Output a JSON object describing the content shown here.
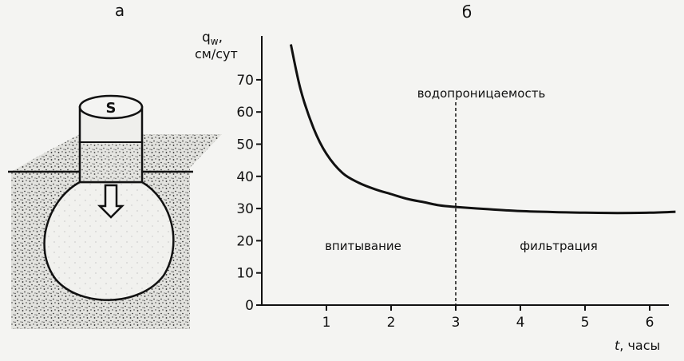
{
  "panels": {
    "left_label": "а",
    "right_label": "б"
  },
  "illustration": {
    "cylinder_label": "S"
  },
  "chart_data": {
    "type": "line",
    "ylabel_line1": "q",
    "ylabel_sub": "w",
    "ylabel_line1_suffix": ",",
    "ylabel_line2": "см/сут",
    "xlabel_var": "t",
    "xlabel_unit": ", часы",
    "xlim": [
      0,
      6.4
    ],
    "ylim": [
      0,
      80
    ],
    "x_ticks": [
      1,
      2,
      3,
      4,
      5,
      6
    ],
    "y_ticks": [
      0,
      10,
      20,
      30,
      40,
      50,
      60,
      70
    ],
    "series": [
      {
        "x": [
          0.45,
          0.6,
          0.8,
          1.0,
          1.25,
          1.5,
          1.75,
          2.0,
          2.25,
          2.5,
          2.75,
          3.0,
          3.5,
          4.0,
          4.5,
          5.0,
          5.5,
          6.0,
          6.4
        ],
        "y": [
          81,
          67,
          55,
          47,
          41,
          38,
          36,
          34.5,
          33,
          32,
          31,
          30.5,
          29.8,
          29.2,
          28.9,
          28.7,
          28.6,
          28.7,
          29
        ]
      }
    ],
    "divider_x": 3,
    "annotations": {
      "permeability": "водопроницаемость",
      "infiltration": "впитывание",
      "filtration": "фильтрация"
    },
    "grid": false
  }
}
